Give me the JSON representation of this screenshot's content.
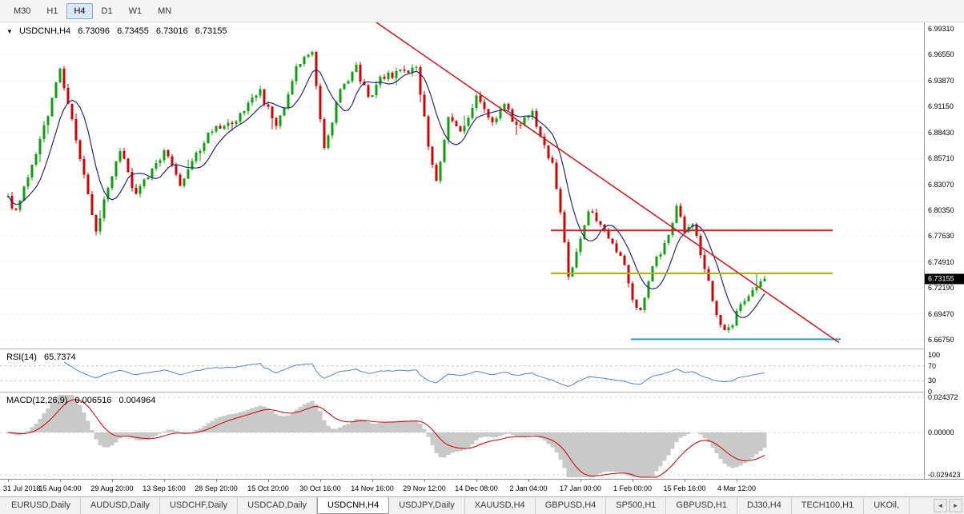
{
  "icons": {
    "chart_menu": "▼"
  },
  "toolbar": {
    "timeframes": [
      {
        "label": "M30",
        "active": false
      },
      {
        "label": "H1",
        "active": false
      },
      {
        "label": "H4",
        "active": true
      },
      {
        "label": "D1",
        "active": false
      },
      {
        "label": "W1",
        "active": false
      },
      {
        "label": "MN",
        "active": false
      }
    ]
  },
  "chart": {
    "symbol_tf": "USDCNH,H4",
    "open": "6.73096",
    "high": "6.73455",
    "low": "6.73016",
    "close": "6.73155",
    "price_badge": "6.73155",
    "price_ticks": [
      "6.99310",
      "6.96550",
      "6.93870",
      "6.91150",
      "6.88430",
      "6.85710",
      "6.83070",
      "6.80350",
      "6.77630",
      "6.74910",
      "6.72190",
      "6.69470",
      "6.66750"
    ]
  },
  "rsi": {
    "label": "RSI(14)",
    "value": "65.7374",
    "levels": [
      "100",
      "70",
      "30",
      "0"
    ]
  },
  "macd": {
    "label": "MACD(12,26,9)",
    "value_main": "0.006516",
    "value_signal": "0.004964",
    "levels": [
      "0.024372",
      "0.00000",
      "-0.029423"
    ]
  },
  "time_axis": {
    "labels": [
      "31 Jul 2018",
      "15 Aug 04:00",
      "29 Aug 20:00",
      "13 Sep 16:00",
      "28 Sep 20:00",
      "15 Oct 20:00",
      "30 Oct 16:00",
      "14 Nov 16:00",
      "29 Nov 12:00",
      "14 Dec 08:00",
      "2 Jan 04:00",
      "17 Jan 00:00",
      "1 Feb 00:00",
      "15 Feb 16:00",
      "4 Mar 12:00"
    ]
  },
  "tabs": {
    "items": [
      "EURUSD,Daily",
      "AUDUSD,Daily",
      "USDCHF,Daily",
      "USDCAD,Daily",
      "USDCNH,H4",
      "USDJPY,Daily",
      "XAUUSD,H4",
      "GBPUSD,H4",
      "SP500,H1",
      "GBPUSD,H1",
      "DJ30,H4",
      "TECH100,H1",
      "UKOil,"
    ],
    "active_index": 4,
    "scroll_left": "◄",
    "scroll_right": "►"
  },
  "colors": {
    "up": "#0ca00c",
    "down": "#d40000",
    "ma": "#26267e",
    "trendline": "#cc2222",
    "hline_red": "#cc2222",
    "hline_olive": "#aab400",
    "hline_blue": "#2a9fd8",
    "rsi_line": "#5b7fd0",
    "macd_hist": "#c9c9c9",
    "macd_signal": "#cc0000",
    "grid": "#e3e3e3"
  },
  "chart_data": {
    "type": "candlestick",
    "symbol": "USDCNH",
    "timeframe": "H4",
    "title": "USDCNH,H4",
    "bars": 190,
    "last_close": 6.73155,
    "last_bar": {
      "o": 6.73096,
      "h": 6.73455,
      "l": 6.73016,
      "c": 6.73155
    },
    "recent_spike_high": 6.7375,
    "price_axis": {
      "min": 6.6675,
      "max": 6.9931
    },
    "waypoints": [
      [
        0,
        6.815
      ],
      [
        2,
        6.8
      ],
      [
        7,
        6.862
      ],
      [
        13,
        6.948
      ],
      [
        16,
        6.896
      ],
      [
        22,
        6.782
      ],
      [
        28,
        6.868
      ],
      [
        32,
        6.818
      ],
      [
        39,
        6.866
      ],
      [
        43,
        6.832
      ],
      [
        50,
        6.884
      ],
      [
        57,
        6.898
      ],
      [
        63,
        6.928
      ],
      [
        67,
        6.888
      ],
      [
        72,
        6.952
      ],
      [
        76,
        6.97
      ],
      [
        79,
        6.868
      ],
      [
        83,
        6.928
      ],
      [
        87,
        6.952
      ],
      [
        90,
        6.92
      ],
      [
        93,
        6.942
      ],
      [
        98,
        6.948
      ],
      [
        102,
        6.952
      ],
      [
        105,
        6.872
      ],
      [
        107,
        6.836
      ],
      [
        110,
        6.898
      ],
      [
        113,
        6.885
      ],
      [
        117,
        6.922
      ],
      [
        121,
        6.898
      ],
      [
        124,
        6.912
      ],
      [
        127,
        6.893
      ],
      [
        131,
        6.903
      ],
      [
        134,
        6.868
      ],
      [
        136,
        6.852
      ],
      [
        138,
        6.798
      ],
      [
        140,
        6.735
      ],
      [
        143,
        6.772
      ],
      [
        145,
        6.802
      ],
      [
        148,
        6.788
      ],
      [
        151,
        6.77
      ],
      [
        154,
        6.748
      ],
      [
        156,
        6.712
      ],
      [
        158,
        6.695
      ],
      [
        161,
        6.742
      ],
      [
        164,
        6.768
      ],
      [
        167,
        6.805
      ],
      [
        169,
        6.783
      ],
      [
        171,
        6.792
      ],
      [
        173,
        6.76
      ],
      [
        175,
        6.726
      ],
      [
        177,
        6.697
      ],
      [
        179,
        6.674
      ],
      [
        181,
        6.686
      ],
      [
        183,
        6.706
      ],
      [
        185,
        6.717
      ],
      [
        187,
        6.724
      ],
      [
        189,
        6.7316
      ]
    ],
    "indicators": {
      "ma_period": 8,
      "rsi_period": 14,
      "macd": [
        12,
        26,
        9
      ],
      "rsi_last": 65.7374,
      "macd_last": 0.006516,
      "macd_signal_last": 0.004964
    },
    "overlays": {
      "trendline": {
        "x1_frac": 0.407,
        "p1": 6.9998,
        "x2_frac": 0.908,
        "p2": 6.6645
      },
      "hlines": [
        {
          "price": 6.782,
          "x1_frac": 0.596,
          "x2_frac": 0.901,
          "color_key": "hline_red"
        },
        {
          "price": 6.737,
          "x1_frac": 0.596,
          "x2_frac": 0.901,
          "color_key": "hline_olive"
        },
        {
          "price": 6.668,
          "x1_frac": 0.683,
          "x2_frac": 0.91,
          "color_key": "hline_blue"
        }
      ]
    },
    "rsi_range": [
      0,
      100
    ],
    "macd_range": [
      0.024372,
      -0.029423
    ]
  }
}
